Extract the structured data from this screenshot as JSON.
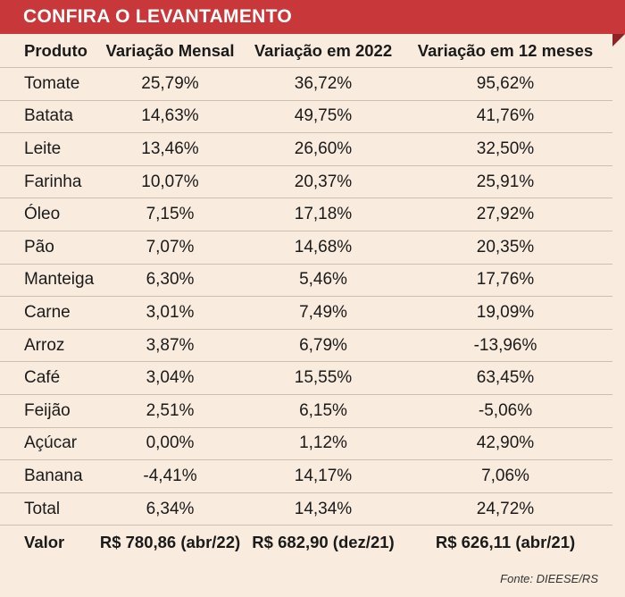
{
  "banner": {
    "title": "CONFIRA O LEVANTAMENTO",
    "color": "#c8383a"
  },
  "table": {
    "headers": [
      "Produto",
      "Variação Mensal",
      "Variação em 2022",
      "Variação em 12 meses"
    ],
    "rows": [
      [
        "Tomate",
        "25,79%",
        "36,72%",
        "95,62%"
      ],
      [
        "Batata",
        "14,63%",
        "49,75%",
        "41,76%"
      ],
      [
        "Leite",
        "13,46%",
        "26,60%",
        "32,50%"
      ],
      [
        "Farinha",
        "10,07%",
        "20,37%",
        "25,91%"
      ],
      [
        "Óleo",
        "7,15%",
        "17,18%",
        "27,92%"
      ],
      [
        "Pão",
        "7,07%",
        "14,68%",
        "20,35%"
      ],
      [
        "Manteiga",
        "6,30%",
        "5,46%",
        "17,76%"
      ],
      [
        "Carne",
        "3,01%",
        "7,49%",
        "19,09%"
      ],
      [
        "Arroz",
        "3,87%",
        "6,79%",
        "-13,96%"
      ],
      [
        "Café",
        "3,04%",
        "15,55%",
        "63,45%"
      ],
      [
        "Feijão",
        "2,51%",
        "6,15%",
        "-5,06%"
      ],
      [
        "Açúcar",
        "0,00%",
        "1,12%",
        "42,90%"
      ],
      [
        "Banana",
        "-4,41%",
        "14,17%",
        "7,06%"
      ],
      [
        "Total",
        "6,34%",
        "14,34%",
        "24,72%"
      ]
    ],
    "valor": [
      "Valor",
      "R$ 780,86 (abr/22)",
      "R$ 682,90 (dez/21)",
      "R$ 626,11 (abr/21)"
    ]
  },
  "source": "Fonte: DIEESE/RS"
}
